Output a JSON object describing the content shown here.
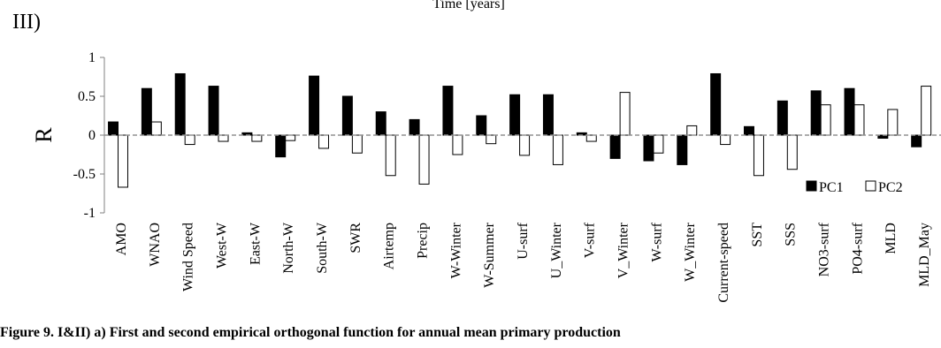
{
  "top_caption": "Time [years]",
  "panel_label": "III)",
  "caption": "Figure 9. I&II) a) First and second empirical orthogonal function for annual mean primary production",
  "chart_data": {
    "type": "bar",
    "ylabel": "R",
    "ylim": [
      -1,
      1
    ],
    "yticks": [
      1,
      0.5,
      0,
      -0.5,
      -1
    ],
    "ytick_labels": [
      "1",
      "0.5",
      "0",
      "-0.5",
      "-1"
    ],
    "grid": false,
    "legend": "bottom-right",
    "categories": [
      "AMO",
      "WNAO",
      "Wind Speed",
      "West-W",
      "East-W",
      "North-W",
      "South-W",
      "SWR",
      "Airtemp",
      "Precip",
      "W-Winter",
      "W-Summer",
      "U-surf",
      "U_Winter",
      "V-surf",
      "V_Winter",
      "W-surf",
      "W_Winter",
      "Current-speed",
      "SST",
      "SSS",
      "NO3-surf",
      "PO4-surf",
      "MLD",
      "MLD_May"
    ],
    "series": [
      {
        "name": "PC1",
        "color": "#000000",
        "fill": "solid",
        "values": [
          0.17,
          0.6,
          0.79,
          0.63,
          0.03,
          -0.28,
          0.76,
          0.5,
          0.3,
          0.2,
          0.63,
          0.25,
          0.52,
          0.52,
          0.03,
          -0.3,
          -0.33,
          -0.38,
          0.79,
          0.11,
          0.44,
          0.57,
          0.6,
          -0.04,
          -0.15
        ]
      },
      {
        "name": "PC2",
        "color": "#ffffff",
        "fill": "hollow",
        "values": [
          -0.67,
          0.17,
          -0.12,
          -0.08,
          -0.08,
          -0.07,
          -0.17,
          -0.23,
          -0.52,
          -0.63,
          -0.25,
          -0.11,
          -0.26,
          -0.38,
          -0.08,
          0.55,
          -0.23,
          0.12,
          -0.12,
          -0.52,
          -0.44,
          0.39,
          0.39,
          0.33,
          0.63
        ]
      }
    ]
  }
}
